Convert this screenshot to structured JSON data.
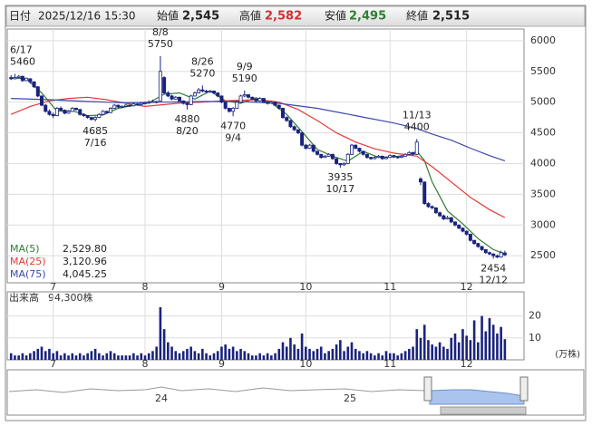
{
  "quote": {
    "date_label": "日付",
    "datetime": "2025/12/16 15:30",
    "open_label": "始値",
    "open": {
      "value": 2545,
      "label": "2,545"
    },
    "high_label": "高値",
    "high": {
      "value": 2582,
      "label": "2,582"
    },
    "low_label": "安値",
    "low": {
      "value": 2495,
      "label": "2,495"
    },
    "close_label": "終値",
    "close": {
      "value": 2515,
      "label": "2,515"
    }
  },
  "chart_data": {
    "type": "candlestick",
    "ylim": [
      2060,
      6190
    ],
    "yticks": [
      2500,
      3000,
      3500,
      4000,
      4500,
      5000,
      5500,
      6000
    ],
    "xlim": [
      -1,
      134
    ],
    "xticks": [
      {
        "value": 11,
        "label": "7"
      },
      {
        "value": 35,
        "label": "8"
      },
      {
        "value": 55,
        "label": "9"
      },
      {
        "value": 77,
        "label": "10"
      },
      {
        "value": 99,
        "label": "11"
      },
      {
        "value": 119,
        "label": "12"
      }
    ],
    "grid": true,
    "up_color": "#ffffff",
    "down_color": "#1a237e",
    "ohlc": [
      [
        5400,
        5440,
        5360,
        5380
      ],
      [
        5380,
        5460,
        5370,
        5400
      ],
      [
        5400,
        5440,
        5390,
        5420
      ],
      [
        5420,
        5430,
        5330,
        5350
      ],
      [
        5350,
        5400,
        5340,
        5390
      ],
      [
        5380,
        5390,
        5300,
        5330
      ],
      [
        5330,
        5340,
        5230,
        5250
      ],
      [
        5250,
        5260,
        5080,
        5100
      ],
      [
        5100,
        5110,
        4930,
        4950
      ],
      [
        4950,
        4970,
        4830,
        4850
      ],
      [
        4850,
        4880,
        4780,
        4800
      ],
      [
        4800,
        4830,
        4740,
        4780
      ],
      [
        4780,
        4920,
        4770,
        4900
      ],
      [
        4900,
        4930,
        4850,
        4870
      ],
      [
        4870,
        4880,
        4800,
        4820
      ],
      [
        4820,
        4870,
        4810,
        4850
      ],
      [
        4850,
        4920,
        4840,
        4900
      ],
      [
        4900,
        4910,
        4860,
        4880
      ],
      [
        4880,
        4890,
        4780,
        4800
      ],
      [
        4800,
        4820,
        4760,
        4780
      ],
      [
        4780,
        4790,
        4730,
        4750
      ],
      [
        4750,
        4760,
        4700,
        4720
      ],
      [
        4720,
        4770,
        4685,
        4750
      ],
      [
        4750,
        4820,
        4740,
        4800
      ],
      [
        4800,
        4870,
        4790,
        4850
      ],
      [
        4850,
        4860,
        4810,
        4830
      ],
      [
        4830,
        4920,
        4820,
        4900
      ],
      [
        4900,
        4970,
        4890,
        4950
      ],
      [
        4950,
        4960,
        4900,
        4920
      ],
      [
        4920,
        4950,
        4900,
        4930
      ],
      [
        4930,
        4970,
        4920,
        4950
      ],
      [
        4950,
        4960,
        4920,
        4940
      ],
      [
        4940,
        4990,
        4930,
        4970
      ],
      [
        4970,
        4980,
        4940,
        4960
      ],
      [
        4960,
        5000,
        4950,
        4980
      ],
      [
        4980,
        5010,
        4960,
        4990
      ],
      [
        4990,
        5030,
        4970,
        5000
      ],
      [
        5000,
        5040,
        4990,
        5010
      ],
      [
        5010,
        5020,
        4980,
        5000
      ],
      [
        5020,
        5750,
        5010,
        5500
      ],
      [
        5400,
        5420,
        5120,
        5150
      ],
      [
        5150,
        5180,
        5080,
        5100
      ],
      [
        5100,
        5120,
        5030,
        5050
      ],
      [
        5050,
        5100,
        5040,
        5080
      ],
      [
        5080,
        5090,
        5000,
        5020
      ],
      [
        5020,
        5030,
        4960,
        4980
      ],
      [
        4980,
        5000,
        4880,
        4960
      ],
      [
        4960,
        5120,
        4950,
        5100
      ],
      [
        5100,
        5170,
        5090,
        5150
      ],
      [
        5150,
        5230,
        5140,
        5200
      ],
      [
        5200,
        5270,
        5160,
        5180
      ],
      [
        5180,
        5200,
        5150,
        5170
      ],
      [
        5170,
        5200,
        5150,
        5180
      ],
      [
        5180,
        5190,
        5130,
        5150
      ],
      [
        5150,
        5160,
        5080,
        5100
      ],
      [
        5100,
        5110,
        4980,
        5000
      ],
      [
        5000,
        5010,
        4880,
        4900
      ],
      [
        4900,
        4910,
        4830,
        4850
      ],
      [
        4850,
        4920,
        4770,
        4900
      ],
      [
        4900,
        5020,
        4890,
        5000
      ],
      [
        5000,
        5120,
        4990,
        5100
      ],
      [
        5100,
        5190,
        5080,
        5120
      ],
      [
        5120,
        5130,
        5060,
        5080
      ],
      [
        5080,
        5090,
        5030,
        5050
      ],
      [
        5050,
        5060,
        5000,
        5020
      ],
      [
        5020,
        5080,
        5010,
        5060
      ],
      [
        5060,
        5070,
        4990,
        5000
      ],
      [
        5000,
        5010,
        4960,
        4980
      ],
      [
        4980,
        5020,
        4970,
        5000
      ],
      [
        5000,
        5010,
        4930,
        4950
      ],
      [
        4950,
        4960,
        4880,
        4900
      ],
      [
        4900,
        4910,
        4730,
        4750
      ],
      [
        4750,
        4770,
        4680,
        4700
      ],
      [
        4700,
        4710,
        4580,
        4600
      ],
      [
        4600,
        4620,
        4530,
        4550
      ],
      [
        4550,
        4560,
        4480,
        4500
      ],
      [
        4500,
        4510,
        4280,
        4300
      ],
      [
        4300,
        4320,
        4230,
        4250
      ],
      [
        4250,
        4320,
        4240,
        4300
      ],
      [
        4300,
        4310,
        4180,
        4200
      ],
      [
        4200,
        4210,
        4130,
        4150
      ],
      [
        4150,
        4160,
        4080,
        4100
      ],
      [
        4100,
        4140,
        4090,
        4120
      ],
      [
        4120,
        4170,
        4110,
        4150
      ],
      [
        4150,
        4160,
        4060,
        4080
      ],
      [
        4080,
        4090,
        3980,
        4000
      ],
      [
        4000,
        4010,
        3935,
        3980
      ],
      [
        3980,
        4020,
        3960,
        4000
      ],
      [
        4000,
        4170,
        3990,
        4150
      ],
      [
        4150,
        4320,
        4140,
        4300
      ],
      [
        4300,
        4310,
        4230,
        4250
      ],
      [
        4250,
        4260,
        4180,
        4200
      ],
      [
        4200,
        4210,
        4130,
        4150
      ],
      [
        4150,
        4160,
        4080,
        4100
      ],
      [
        4100,
        4110,
        4060,
        4080
      ],
      [
        4080,
        4120,
        4070,
        4100
      ],
      [
        4100,
        4140,
        4090,
        4120
      ],
      [
        4120,
        4130,
        4060,
        4080
      ],
      [
        4080,
        4120,
        4070,
        4100
      ],
      [
        4100,
        4150,
        4090,
        4130
      ],
      [
        4130,
        4140,
        4090,
        4110
      ],
      [
        4110,
        4120,
        4080,
        4100
      ],
      [
        4100,
        4140,
        4090,
        4120
      ],
      [
        4120,
        4170,
        4110,
        4150
      ],
      [
        4150,
        4200,
        4140,
        4180
      ],
      [
        4180,
        4190,
        4130,
        4150
      ],
      [
        4150,
        4400,
        4140,
        4350
      ],
      [
        3750,
        3780,
        3650,
        3700
      ],
      [
        3700,
        3710,
        3330,
        3350
      ],
      [
        3350,
        3370,
        3280,
        3300
      ],
      [
        3300,
        3320,
        3260,
        3280
      ],
      [
        3280,
        3290,
        3180,
        3200
      ],
      [
        3200,
        3220,
        3130,
        3150
      ],
      [
        3150,
        3170,
        3080,
        3100
      ],
      [
        3100,
        3150,
        3090,
        3120
      ],
      [
        3120,
        3130,
        3030,
        3050
      ],
      [
        3050,
        3060,
        2980,
        3000
      ],
      [
        3000,
        3010,
        2930,
        2950
      ],
      [
        2950,
        2960,
        2880,
        2900
      ],
      [
        2900,
        2910,
        2830,
        2850
      ],
      [
        2850,
        2860,
        2730,
        2750
      ],
      [
        2750,
        2760,
        2680,
        2700
      ],
      [
        2700,
        2710,
        2630,
        2650
      ],
      [
        2650,
        2660,
        2580,
        2600
      ],
      [
        2600,
        2610,
        2530,
        2550
      ],
      [
        2550,
        2570,
        2510,
        2530
      ],
      [
        2530,
        2540,
        2454,
        2500
      ],
      [
        2500,
        2520,
        2460,
        2480
      ],
      [
        2480,
        2580,
        2470,
        2550
      ],
      [
        2545,
        2582,
        2495,
        2515
      ]
    ],
    "moving_averages": [
      {
        "name": "MA(5)",
        "color": "#2e7d32",
        "last": {
          "value": 2529.8,
          "label": "2,529.80"
        },
        "x": [
          0,
          4,
          8,
          12,
          16,
          20,
          24,
          28,
          32,
          36,
          40,
          44,
          48,
          52,
          56,
          60,
          64,
          68,
          72,
          76,
          80,
          84,
          88,
          92,
          96,
          100,
          104,
          106,
          108,
          110,
          114,
          118,
          122,
          126,
          129
        ],
        "values": [
          5390,
          5380,
          5150,
          4850,
          4860,
          4780,
          4790,
          4900,
          4950,
          4990,
          5130,
          5150,
          5050,
          5180,
          5020,
          4980,
          5070,
          4990,
          4800,
          4520,
          4230,
          4120,
          4040,
          4200,
          4100,
          4110,
          4140,
          4200,
          4050,
          3700,
          3230,
          3020,
          2780,
          2600,
          2530
        ]
      },
      {
        "name": "MA(25)",
        "color": "#e53935",
        "last": {
          "value": 3120.96,
          "label": "3,120.96"
        },
        "x": [
          0,
          5,
          10,
          15,
          20,
          25,
          30,
          35,
          40,
          45,
          50,
          55,
          60,
          65,
          70,
          75,
          80,
          85,
          90,
          95,
          100,
          106,
          110,
          115,
          120,
          125,
          129
        ],
        "values": [
          4800,
          4930,
          5020,
          5060,
          5080,
          5040,
          4980,
          4930,
          4960,
          4990,
          5000,
          5020,
          5030,
          5040,
          5000,
          4880,
          4700,
          4500,
          4350,
          4240,
          4170,
          4120,
          3950,
          3700,
          3450,
          3250,
          3121
        ]
      },
      {
        "name": "MA(75)",
        "color": "#3949ab",
        "last": {
          "value": 4045.25,
          "label": "4,045.25"
        },
        "x": [
          0,
          10,
          20,
          30,
          40,
          50,
          60,
          70,
          80,
          90,
          100,
          106,
          110,
          115,
          120,
          125,
          129
        ],
        "values": [
          5060,
          5040,
          5010,
          4990,
          5000,
          5010,
          5010,
          4980,
          4900,
          4780,
          4660,
          4570,
          4480,
          4380,
          4250,
          4130,
          4045
        ]
      }
    ],
    "annotations": [
      {
        "x": 1,
        "date": "6/17",
        "value": 5460
      },
      {
        "x": 22,
        "date": "7/16",
        "value": 4685
      },
      {
        "x": 39,
        "date": "8/8",
        "value": 5750
      },
      {
        "x": 46,
        "date": "8/20",
        "value": 4880
      },
      {
        "x": 50,
        "date": "8/26",
        "value": 5270
      },
      {
        "x": 58,
        "date": "9/4",
        "value": 4770
      },
      {
        "x": 61,
        "date": "9/9",
        "value": 5190
      },
      {
        "x": 86,
        "date": "10/17",
        "value": 3935
      },
      {
        "x": 106,
        "date": "11/13",
        "value": 4400
      },
      {
        "x": 126,
        "date": "12/12",
        "value": 2454
      }
    ],
    "volume": {
      "label": "出来高",
      "last_label": "94,300株",
      "unit": "(万株)",
      "color": "#1a237e",
      "ylim": [
        0,
        31
      ],
      "yticks": [
        10,
        20
      ],
      "values": [
        3,
        2,
        2,
        3,
        2,
        3,
        4,
        5,
        6,
        4,
        5,
        3,
        4,
        2,
        3,
        2,
        3,
        2,
        3,
        2,
        3,
        4,
        5,
        3,
        2,
        3,
        4,
        3,
        2,
        2,
        2,
        2,
        3,
        2,
        3,
        2,
        3,
        4,
        6,
        24,
        14,
        8,
        6,
        4,
        3,
        4,
        5,
        6,
        4,
        3,
        5,
        3,
        2,
        3,
        4,
        6,
        7,
        5,
        6,
        4,
        5,
        4,
        3,
        2,
        2,
        3,
        2,
        3,
        2,
        3,
        5,
        8,
        6,
        10,
        7,
        5,
        12,
        6,
        5,
        4,
        5,
        6,
        3,
        4,
        5,
        7,
        9,
        4,
        6,
        8,
        5,
        4,
        3,
        4,
        3,
        2,
        3,
        2,
        4,
        3,
        3,
        2,
        3,
        4,
        5,
        6,
        14,
        10,
        16,
        9,
        7,
        6,
        8,
        6,
        5,
        10,
        12,
        8,
        14,
        11,
        9,
        18,
        8,
        20,
        13,
        19,
        16,
        12,
        15,
        9.43
      ]
    },
    "navigator": {
      "year_labels": [
        "24",
        "25"
      ]
    }
  }
}
